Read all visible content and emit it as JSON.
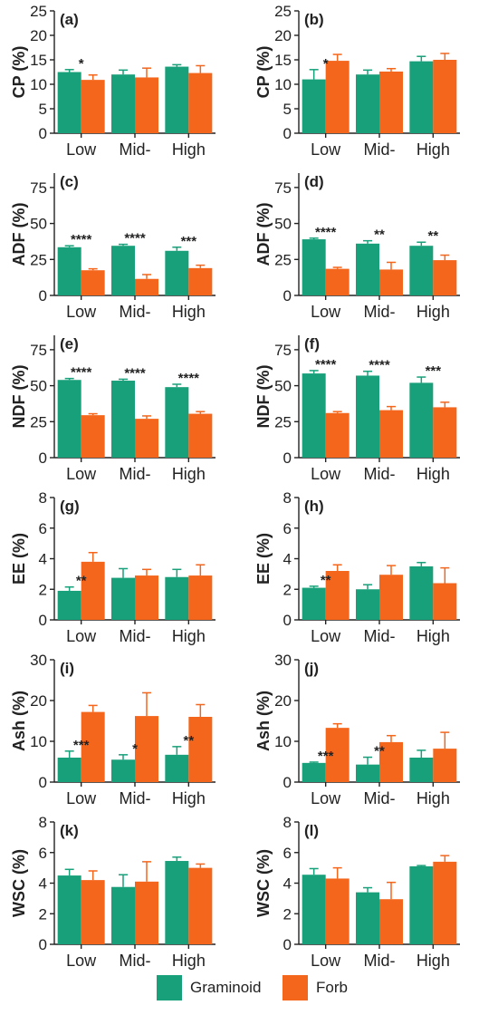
{
  "colors": {
    "graminoid": "#18a07a",
    "forb": "#f4661c",
    "text": "#222222"
  },
  "legend": {
    "graminoid_label": "Graminoid",
    "forb_label": "Forb"
  },
  "chart_data": [
    {
      "type": "bar",
      "panel": "(a)",
      "ylabel": "CP (%)",
      "ylim": [
        0,
        25
      ],
      "yticks": [
        0,
        5,
        10,
        15,
        20,
        25
      ],
      "categories": [
        "Low",
        "Mid-",
        "High"
      ],
      "series": [
        {
          "name": "Graminoid",
          "values": [
            12.5,
            12.0,
            13.6
          ],
          "errors": [
            0.5,
            0.9,
            0.4
          ]
        },
        {
          "name": "Forb",
          "values": [
            10.9,
            11.4,
            12.3
          ],
          "errors": [
            1.0,
            1.9,
            1.5
          ]
        }
      ],
      "annotations": [
        "*",
        "",
        ""
      ]
    },
    {
      "type": "bar",
      "panel": "(b)",
      "ylabel": "CP (%)",
      "ylim": [
        0,
        25
      ],
      "yticks": [
        0,
        5,
        10,
        15,
        20,
        25
      ],
      "categories": [
        "Low",
        "Mid-",
        "High"
      ],
      "series": [
        {
          "name": "Graminoid",
          "values": [
            11.0,
            12.0,
            14.7
          ],
          "errors": [
            2.0,
            0.9,
            1.0
          ]
        },
        {
          "name": "Forb",
          "values": [
            14.8,
            12.6,
            15.0
          ],
          "errors": [
            1.3,
            0.6,
            1.3
          ]
        }
      ],
      "annotations": [
        "*",
        "",
        ""
      ]
    },
    {
      "type": "bar",
      "panel": "(c)",
      "ylabel": "ADF (%)",
      "ylim": [
        0,
        85
      ],
      "yticks": [
        0,
        25,
        50,
        75
      ],
      "categories": [
        "Low",
        "Mid-",
        "High"
      ],
      "series": [
        {
          "name": "Graminoid",
          "values": [
            33.5,
            34.5,
            31.0
          ],
          "errors": [
            1.0,
            1.0,
            2.5
          ]
        },
        {
          "name": "Forb",
          "values": [
            17.5,
            11.5,
            19.0
          ],
          "errors": [
            1.0,
            3.0,
            2.0
          ]
        }
      ],
      "annotations": [
        "****",
        "****",
        "***"
      ]
    },
    {
      "type": "bar",
      "panel": "(d)",
      "ylabel": "ADF (%)",
      "ylim": [
        0,
        85
      ],
      "yticks": [
        0,
        25,
        50,
        75
      ],
      "categories": [
        "Low",
        "Mid-",
        "High"
      ],
      "series": [
        {
          "name": "Graminoid",
          "values": [
            39.0,
            36.0,
            34.5
          ],
          "errors": [
            0.8,
            2.0,
            2.5
          ]
        },
        {
          "name": "Forb",
          "values": [
            18.5,
            18.0,
            24.5
          ],
          "errors": [
            1.0,
            5.0,
            3.5
          ]
        }
      ],
      "annotations": [
        "****",
        "**",
        "**"
      ]
    },
    {
      "type": "bar",
      "panel": "(e)",
      "ylabel": "NDF (%)",
      "ylim": [
        0,
        85
      ],
      "yticks": [
        0,
        25,
        50,
        75
      ],
      "categories": [
        "Low",
        "Mid-",
        "High"
      ],
      "series": [
        {
          "name": "Graminoid",
          "values": [
            54.0,
            53.5,
            49.0
          ],
          "errors": [
            1.0,
            1.0,
            2.0
          ]
        },
        {
          "name": "Forb",
          "values": [
            29.5,
            27.0,
            30.5
          ],
          "errors": [
            1.0,
            2.0,
            1.5
          ]
        }
      ],
      "annotations": [
        "****",
        "****",
        "****"
      ]
    },
    {
      "type": "bar",
      "panel": "(f)",
      "ylabel": "NDF (%)",
      "ylim": [
        0,
        85
      ],
      "yticks": [
        0,
        25,
        50,
        75
      ],
      "categories": [
        "Low",
        "Mid-",
        "High"
      ],
      "series": [
        {
          "name": "Graminoid",
          "values": [
            58.5,
            57.0,
            52.0
          ],
          "errors": [
            2.0,
            3.0,
            4.0
          ]
        },
        {
          "name": "Forb",
          "values": [
            31.0,
            33.0,
            35.0
          ],
          "errors": [
            1.0,
            2.5,
            3.5
          ]
        }
      ],
      "annotations": [
        "****",
        "****",
        "***"
      ]
    },
    {
      "type": "bar",
      "panel": "(g)",
      "ylabel": "EE (%)",
      "ylim": [
        0,
        8
      ],
      "yticks": [
        0,
        2,
        4,
        6,
        8
      ],
      "categories": [
        "Low",
        "Mid-",
        "High"
      ],
      "series": [
        {
          "name": "Graminoid",
          "values": [
            1.9,
            2.75,
            2.8
          ],
          "errors": [
            0.25,
            0.6,
            0.5
          ]
        },
        {
          "name": "Forb",
          "values": [
            3.8,
            2.9,
            2.9
          ],
          "errors": [
            0.6,
            0.4,
            0.7
          ]
        }
      ],
      "annotations": [
        "**",
        "",
        ""
      ]
    },
    {
      "type": "bar",
      "panel": "(h)",
      "ylabel": "EE (%)",
      "ylim": [
        0,
        8
      ],
      "yticks": [
        0,
        2,
        4,
        6,
        8
      ],
      "categories": [
        "Low",
        "Mid-",
        "High"
      ],
      "series": [
        {
          "name": "Graminoid",
          "values": [
            2.1,
            2.0,
            3.5
          ],
          "errors": [
            0.1,
            0.3,
            0.25
          ]
        },
        {
          "name": "Forb",
          "values": [
            3.2,
            2.95,
            2.4
          ],
          "errors": [
            0.4,
            0.6,
            1.0
          ]
        }
      ],
      "annotations": [
        "**",
        "",
        ""
      ]
    },
    {
      "type": "bar",
      "panel": "(i)",
      "ylabel": "Ash (%)",
      "ylim": [
        0,
        30
      ],
      "yticks": [
        0,
        10,
        20,
        30
      ],
      "categories": [
        "Low",
        "Mid-",
        "High"
      ],
      "series": [
        {
          "name": "Graminoid",
          "values": [
            6.0,
            5.5,
            6.7
          ],
          "errors": [
            1.6,
            1.2,
            2.0
          ]
        },
        {
          "name": "Forb",
          "values": [
            17.2,
            16.2,
            16.0
          ],
          "errors": [
            1.6,
            5.7,
            3.0
          ]
        }
      ],
      "annotations": [
        "***",
        "*",
        "**"
      ]
    },
    {
      "type": "bar",
      "panel": "(j)",
      "ylabel": "Ash (%)",
      "ylim": [
        0,
        30
      ],
      "yticks": [
        0,
        10,
        20,
        30
      ],
      "categories": [
        "Low",
        "Mid-",
        "High"
      ],
      "series": [
        {
          "name": "Graminoid",
          "values": [
            4.7,
            4.3,
            6.0
          ],
          "errors": [
            0.2,
            1.8,
            1.8
          ]
        },
        {
          "name": "Forb",
          "values": [
            13.3,
            9.8,
            8.2
          ],
          "errors": [
            1.0,
            1.6,
            4.0
          ]
        }
      ],
      "annotations": [
        "***",
        "**",
        ""
      ]
    },
    {
      "type": "bar",
      "panel": "(k)",
      "ylabel": "WSC (%)",
      "ylim": [
        0,
        8
      ],
      "yticks": [
        0,
        2,
        4,
        6,
        8
      ],
      "categories": [
        "Low",
        "Mid-",
        "High"
      ],
      "series": [
        {
          "name": "Graminoid",
          "values": [
            4.5,
            3.75,
            5.45
          ],
          "errors": [
            0.4,
            0.8,
            0.25
          ]
        },
        {
          "name": "Forb",
          "values": [
            4.2,
            4.1,
            5.0
          ],
          "errors": [
            0.6,
            1.3,
            0.25
          ]
        }
      ],
      "annotations": [
        "",
        "",
        ""
      ]
    },
    {
      "type": "bar",
      "panel": "(l)",
      "ylabel": "WSC (%)",
      "ylim": [
        0,
        8
      ],
      "yticks": [
        0,
        2,
        4,
        6,
        8
      ],
      "categories": [
        "Low",
        "Mid-",
        "High"
      ],
      "series": [
        {
          "name": "Graminoid",
          "values": [
            4.55,
            3.4,
            5.1
          ],
          "errors": [
            0.4,
            0.3,
            0.05
          ]
        },
        {
          "name": "Forb",
          "values": [
            4.3,
            2.95,
            5.4
          ],
          "errors": [
            0.7,
            1.1,
            0.4
          ]
        }
      ],
      "annotations": [
        "",
        "",
        ""
      ]
    }
  ]
}
